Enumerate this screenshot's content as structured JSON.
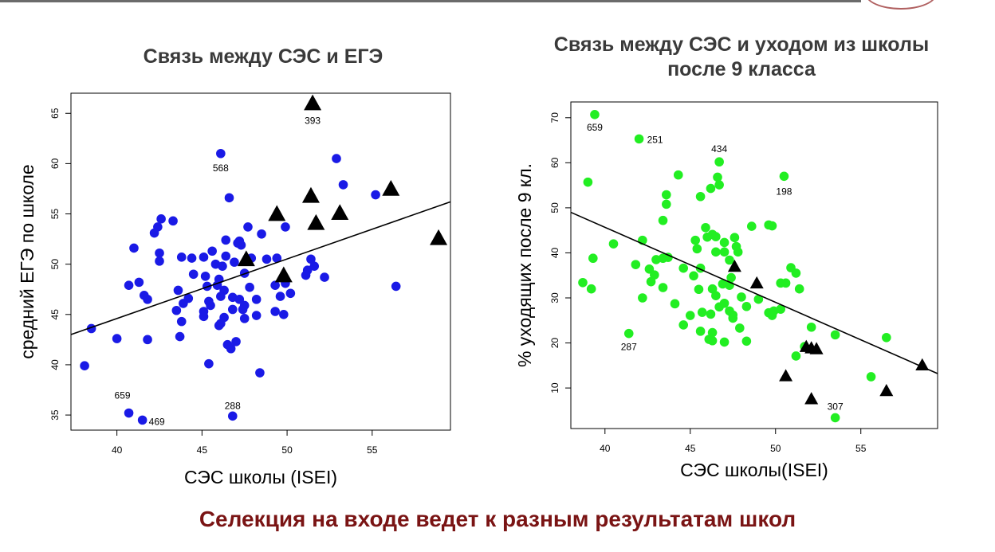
{
  "colors": {
    "left_points": "#1a1ae6",
    "right_points": "#22ee22",
    "triangles": "#000000",
    "footer": "#7a1414",
    "title": "#3a3a3a"
  },
  "footer_text": "Селекция на входе ведет к разным результатам школ",
  "chart_data": [
    {
      "type": "scatter",
      "title": "Связь между СЭС и ЕГЭ",
      "xlabel": "СЭС школы (ISEI)",
      "ylabel": "средний ЕГЭ по школе",
      "xlim": [
        37.3,
        59.6
      ],
      "ylim": [
        33.5,
        67.0
      ],
      "xticks": [
        40,
        45,
        50,
        55
      ],
      "yticks": [
        35,
        40,
        45,
        50,
        55,
        60,
        65
      ],
      "grid": false,
      "regression_line": [
        [
          37.3,
          43.0
        ],
        [
          59.6,
          56.2
        ]
      ],
      "series": [
        {
          "marker": "circle",
          "points": [
            [
              46.1,
              61.0
            ],
            [
              52.9,
              60.5
            ],
            [
              53.3,
              57.9
            ],
            [
              46.6,
              56.6
            ],
            [
              55.2,
              56.9
            ],
            [
              42.6,
              54.5
            ],
            [
              43.3,
              54.3
            ],
            [
              42.4,
              53.7
            ],
            [
              42.2,
              53.1
            ],
            [
              47.7,
              53.7
            ],
            [
              49.9,
              53.7
            ],
            [
              48.5,
              53.0
            ],
            [
              46.4,
              52.4
            ],
            [
              47.1,
              52.1
            ],
            [
              47.3,
              51.9
            ],
            [
              47.2,
              52.3
            ],
            [
              45.6,
              51.3
            ],
            [
              41.0,
              51.6
            ],
            [
              42.5,
              51.1
            ],
            [
              43.8,
              50.7
            ],
            [
              44.4,
              50.6
            ],
            [
              45.1,
              50.7
            ],
            [
              46.4,
              50.8
            ],
            [
              46.9,
              50.2
            ],
            [
              46.2,
              49.8
            ],
            [
              45.8,
              50.0
            ],
            [
              47.9,
              50.6
            ],
            [
              48.8,
              50.5
            ],
            [
              49.4,
              50.6
            ],
            [
              51.4,
              50.5
            ],
            [
              51.6,
              49.8
            ],
            [
              42.5,
              50.3
            ],
            [
              44.5,
              49.0
            ],
            [
              45.2,
              48.8
            ],
            [
              46.0,
              48.5
            ],
            [
              47.5,
              49.1
            ],
            [
              51.2,
              49.4
            ],
            [
              51.1,
              48.9
            ],
            [
              52.2,
              48.7
            ],
            [
              40.7,
              47.9
            ],
            [
              41.3,
              48.2
            ],
            [
              43.6,
              47.4
            ],
            [
              45.3,
              47.8
            ],
            [
              45.9,
              47.9
            ],
            [
              46.3,
              47.4
            ],
            [
              47.8,
              47.7
            ],
            [
              49.3,
              47.9
            ],
            [
              49.9,
              48.1
            ],
            [
              50.2,
              47.1
            ],
            [
              56.4,
              47.8
            ],
            [
              41.6,
              46.9
            ],
            [
              41.8,
              46.5
            ],
            [
              43.9,
              46.1
            ],
            [
              44.2,
              46.6
            ],
            [
              45.4,
              46.3
            ],
            [
              46.1,
              46.8
            ],
            [
              46.8,
              46.7
            ],
            [
              47.2,
              46.5
            ],
            [
              47.5,
              45.9
            ],
            [
              48.2,
              46.5
            ],
            [
              49.6,
              46.8
            ],
            [
              43.5,
              45.4
            ],
            [
              45.1,
              45.3
            ],
            [
              45.5,
              45.9
            ],
            [
              46.8,
              45.5
            ],
            [
              47.4,
              45.5
            ],
            [
              49.3,
              45.3
            ],
            [
              49.8,
              45.0
            ],
            [
              43.8,
              44.3
            ],
            [
              45.1,
              44.8
            ],
            [
              46.0,
              43.9
            ],
            [
              46.1,
              44.1
            ],
            [
              46.3,
              44.7
            ],
            [
              47.5,
              44.6
            ],
            [
              48.2,
              44.9
            ],
            [
              38.5,
              43.6
            ],
            [
              40.0,
              42.6
            ],
            [
              41.8,
              42.5
            ],
            [
              43.7,
              42.8
            ],
            [
              46.5,
              42.0
            ],
            [
              47.0,
              42.3
            ],
            [
              46.7,
              41.6
            ],
            [
              45.4,
              40.1
            ],
            [
              38.1,
              39.9
            ],
            [
              48.4,
              39.2
            ],
            [
              46.8,
              34.9
            ],
            [
              40.7,
              35.2
            ],
            [
              41.5,
              34.5
            ]
          ],
          "labels": [
            {
              "point": [
                46.1,
                61.0
              ],
              "text": "568"
            },
            {
              "point": [
                40.7,
                35.2
              ],
              "text": "659"
            },
            {
              "point": [
                41.5,
                34.5
              ],
              "text": "469"
            },
            {
              "point": [
                46.8,
                34.9
              ],
              "text": "288"
            }
          ]
        },
        {
          "marker": "triangle",
          "points": [
            [
              51.5,
              66.0
            ],
            [
              47.6,
              50.5
            ],
            [
              49.8,
              48.9
            ],
            [
              49.4,
              55.0
            ],
            [
              51.4,
              56.8
            ],
            [
              51.7,
              54.1
            ],
            [
              53.1,
              55.1
            ],
            [
              56.1,
              57.5
            ],
            [
              58.9,
              52.6
            ]
          ],
          "labels": [
            {
              "point": [
                51.5,
                66.0
              ],
              "text": "393"
            }
          ]
        }
      ]
    },
    {
      "type": "scatter",
      "title": "Связь между СЭС и уходом из школы после 9 класса",
      "xlabel": "СЭС школы(ISEI)",
      "ylabel": "% уходящих после 9 кл.",
      "xlim": [
        38.0,
        59.5
      ],
      "ylim": [
        1.0,
        73.5
      ],
      "xticks": [
        40,
        45,
        50,
        55
      ],
      "yticks": [
        10,
        20,
        30,
        40,
        50,
        60,
        70
      ],
      "grid": false,
      "regression_line": [
        [
          38.0,
          49.0
        ],
        [
          59.5,
          13.2
        ]
      ],
      "series": [
        {
          "marker": "circle",
          "points": [
            [
              39.4,
              70.7
            ],
            [
              42.0,
              65.3
            ],
            [
              46.7,
              60.2
            ],
            [
              50.5,
              57.0
            ],
            [
              44.3,
              57.3
            ],
            [
              46.6,
              56.8
            ],
            [
              46.2,
              54.3
            ],
            [
              46.7,
              55.1
            ],
            [
              39.0,
              55.7
            ],
            [
              45.6,
              52.5
            ],
            [
              43.6,
              52.9
            ],
            [
              43.6,
              50.8
            ],
            [
              43.4,
              47.2
            ],
            [
              45.9,
              45.6
            ],
            [
              46.3,
              44.1
            ],
            [
              46.0,
              43.5
            ],
            [
              46.5,
              43.6
            ],
            [
              47.6,
              43.4
            ],
            [
              48.6,
              45.9
            ],
            [
              49.6,
              46.2
            ],
            [
              49.8,
              46.0
            ],
            [
              42.2,
              42.8
            ],
            [
              40.5,
              42.0
            ],
            [
              45.3,
              42.8
            ],
            [
              47.0,
              42.3
            ],
            [
              47.7,
              41.4
            ],
            [
              45.4,
              40.9
            ],
            [
              46.5,
              40.2
            ],
            [
              47.0,
              40.2
            ],
            [
              47.8,
              40.2
            ],
            [
              39.3,
              38.8
            ],
            [
              43.0,
              38.5
            ],
            [
              43.4,
              38.8
            ],
            [
              43.7,
              39.0
            ],
            [
              41.8,
              37.4
            ],
            [
              47.3,
              38.4
            ],
            [
              42.6,
              36.4
            ],
            [
              44.6,
              36.6
            ],
            [
              45.6,
              36.6
            ],
            [
              50.9,
              36.7
            ],
            [
              51.2,
              35.5
            ],
            [
              42.9,
              35.1
            ],
            [
              45.2,
              34.9
            ],
            [
              47.4,
              34.5
            ],
            [
              38.7,
              33.4
            ],
            [
              42.7,
              33.6
            ],
            [
              43.4,
              32.3
            ],
            [
              46.9,
              33.1
            ],
            [
              47.3,
              32.8
            ],
            [
              50.3,
              33.3
            ],
            [
              50.6,
              33.3
            ],
            [
              39.2,
              32.0
            ],
            [
              45.5,
              31.9
            ],
            [
              46.3,
              32.0
            ],
            [
              51.4,
              32.0
            ],
            [
              46.5,
              30.5
            ],
            [
              48.0,
              30.2
            ],
            [
              49.0,
              29.7
            ],
            [
              42.2,
              30.0
            ],
            [
              44.1,
              28.7
            ],
            [
              46.7,
              28.0
            ],
            [
              47.0,
              28.8
            ],
            [
              48.3,
              28.1
            ],
            [
              49.9,
              27.1
            ],
            [
              50.3,
              27.5
            ],
            [
              45.7,
              26.8
            ],
            [
              46.2,
              26.4
            ],
            [
              47.3,
              27.1
            ],
            [
              47.5,
              26.2
            ],
            [
              49.6,
              26.7
            ],
            [
              49.8,
              26.1
            ],
            [
              45.0,
              26.1
            ],
            [
              47.5,
              25.5
            ],
            [
              44.6,
              24.0
            ],
            [
              47.9,
              23.3
            ],
            [
              41.4,
              22.1
            ],
            [
              45.6,
              22.6
            ],
            [
              46.3,
              22.3
            ],
            [
              52.1,
              23.5
            ],
            [
              53.5,
              21.8
            ],
            [
              46.1,
              20.8
            ],
            [
              46.3,
              20.5
            ],
            [
              47.0,
              20.2
            ],
            [
              48.3,
              20.4
            ],
            [
              51.7,
              19.2
            ],
            [
              56.5,
              21.2
            ],
            [
              51.2,
              17.1
            ],
            [
              55.6,
              12.5
            ],
            [
              53.5,
              3.4
            ]
          ],
          "labels": [
            {
              "point": [
                39.4,
                70.7
              ],
              "text": "659"
            },
            {
              "point": [
                42.0,
                65.3
              ],
              "text": "251"
            },
            {
              "point": [
                46.7,
                60.2
              ],
              "text": "434"
            },
            {
              "point": [
                50.5,
                57.0
              ],
              "text": "198"
            },
            {
              "point": [
                41.4,
                22.1
              ],
              "text": "287"
            },
            {
              "point": [
                53.5,
                3.4
              ],
              "text": "307"
            }
          ]
        },
        {
          "marker": "triangle",
          "points": [
            [
              47.6,
              37.0
            ],
            [
              48.9,
              33.3
            ],
            [
              51.8,
              19.2
            ],
            [
              52.1,
              18.9
            ],
            [
              52.4,
              18.7
            ],
            [
              50.6,
              12.7
            ],
            [
              52.1,
              7.6
            ],
            [
              56.5,
              9.4
            ],
            [
              58.6,
              15.1
            ]
          ],
          "labels": []
        }
      ]
    }
  ]
}
